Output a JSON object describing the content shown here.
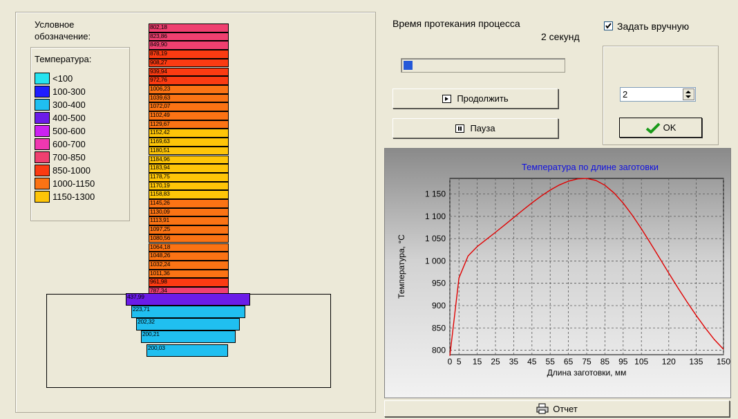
{
  "legend": {
    "title_line1": "Условное",
    "title_line2": "обозначение:",
    "temperature_label": "Температура:",
    "items": [
      {
        "label": "<100",
        "color": "#26e3ef"
      },
      {
        "label": "100-300",
        "color": "#1e1eff"
      },
      {
        "label": "300-400",
        "color": "#20bff0"
      },
      {
        "label": "400-500",
        "color": "#6b1ce8"
      },
      {
        "label": "500-600",
        "color": "#cc22f2"
      },
      {
        "label": "600-700",
        "color": "#ef38b1"
      },
      {
        "label": "700-850",
        "color": "#ef4070"
      },
      {
        "label": "850-1000",
        "color": "#fb3b12"
      },
      {
        "label": "1000-1150",
        "color": "#fb7314"
      },
      {
        "label": "1150-1300",
        "color": "#fec508"
      }
    ]
  },
  "billet_values": [
    "802,18",
    "823,86",
    "849,90",
    "878,19",
    "908,27",
    "939,94",
    "972,76",
    "1006,23",
    "1039,63",
    "1072,07",
    "1102,49",
    "1129,67",
    "1152,42",
    "1169,63",
    "1180,51",
    "1184,96",
    "1183,94",
    "1178,75",
    "1170,19",
    "1158,83",
    "1145,26",
    "1130,09",
    "1113,91",
    "1097,25",
    "1080,56",
    "1064,18",
    "1048,26",
    "1032,24",
    "1011,36",
    "961,98",
    "787,34"
  ],
  "billet_colors": [
    "#ef4070",
    "#ef4070",
    "#ef4070",
    "#fb3b12",
    "#fb3b12",
    "#fb3b12",
    "#fb3b12",
    "#fb7314",
    "#fb7314",
    "#fb7314",
    "#fb7314",
    "#fb7314",
    "#fec508",
    "#fec508",
    "#fec508",
    "#fec508",
    "#fec508",
    "#fec508",
    "#fec508",
    "#fec508",
    "#fb7314",
    "#fb7314",
    "#fb7314",
    "#fb7314",
    "#fb7314",
    "#fb7314",
    "#fb7314",
    "#fb7314",
    "#fb7314",
    "#fb3b12",
    "#ef4070"
  ],
  "die_values": [
    "437,99",
    "223,71",
    "202,32",
    "200,21",
    "200,03"
  ],
  "die_colors": [
    "#6b1ce8",
    "#20bff0",
    "#20bff0",
    "#20bff0",
    "#20bff0"
  ],
  "process": {
    "time_label": "Время протекания процесса",
    "time_value": "2 секунд",
    "progress": 0.04
  },
  "manual": {
    "checkbox_label": "Задать вручную",
    "checked": true,
    "spin_value": "2",
    "ok_label": "OK"
  },
  "buttons": {
    "continue_label": "Продолжить",
    "pause_label": "Пауза",
    "report_label": "Отчет"
  },
  "chart_data": {
    "type": "line",
    "title": "Температура по длине заготовки",
    "xlabel": "Длина заготовки, мм",
    "ylabel": "Температура, °С",
    "xlim": [
      0,
      150
    ],
    "ylim": [
      790,
      1185
    ],
    "x_ticks": [
      "0",
      "5",
      "15",
      "25",
      "35",
      "45",
      "55",
      "65",
      "75",
      "85",
      "95",
      "105",
      "120",
      "135",
      "150"
    ],
    "y_ticks": [
      "800",
      "850",
      "900",
      "950",
      "1 000",
      "1 050",
      "1 100",
      "1 150"
    ],
    "series": [
      {
        "color": "#e00000",
        "x": [
          0,
          5,
          10,
          15,
          20,
          25,
          30,
          35,
          40,
          45,
          50,
          55,
          60,
          65,
          70,
          75,
          80,
          85,
          90,
          95,
          100,
          105,
          110,
          115,
          120,
          125,
          130,
          135,
          140,
          145,
          150
        ],
        "y": [
          787.34,
          961.98,
          1011.36,
          1032.24,
          1048.26,
          1064.18,
          1080.56,
          1097.25,
          1113.91,
          1130.09,
          1145.26,
          1158.83,
          1170.19,
          1178.75,
          1183.94,
          1184.96,
          1180.51,
          1169.63,
          1152.42,
          1129.67,
          1102.49,
          1072.07,
          1039.63,
          1006.23,
          972.76,
          939.94,
          908.27,
          878.19,
          849.9,
          823.86,
          802.18
        ]
      }
    ]
  }
}
